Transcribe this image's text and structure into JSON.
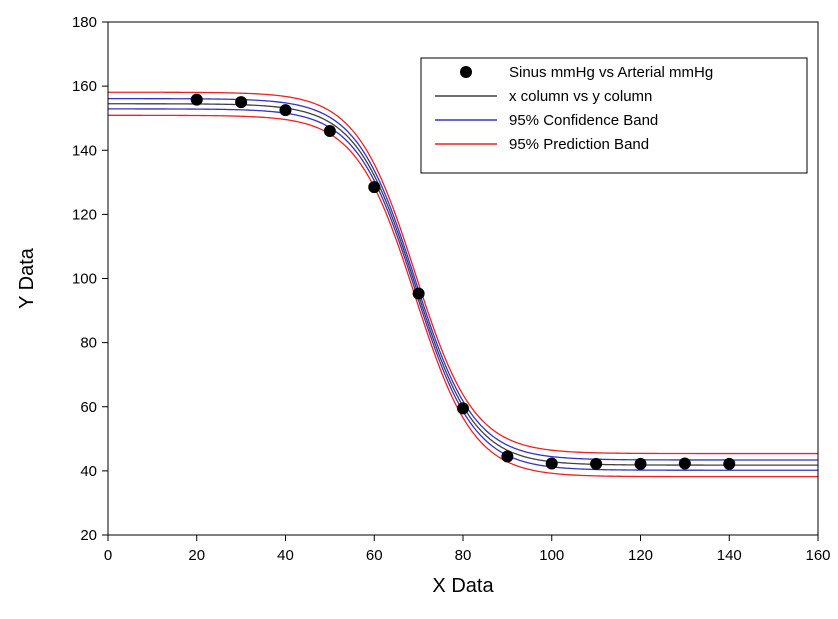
{
  "chart_data": {
    "type": "scatter",
    "title": "",
    "xlabel": "X Data",
    "ylabel": "Y Data",
    "xlim": [
      0,
      160
    ],
    "ylim": [
      20,
      180
    ],
    "xticks": [
      0,
      20,
      40,
      60,
      80,
      100,
      120,
      140,
      160
    ],
    "yticks": [
      20,
      40,
      60,
      80,
      100,
      120,
      140,
      160,
      180
    ],
    "grid": false,
    "legend_position": "top-right",
    "points": {
      "name": "Sinus mmHg vs Arterial mmHg",
      "color": "#000000",
      "x": [
        20,
        30,
        40,
        50,
        60,
        70,
        80,
        90,
        100,
        110,
        120,
        130,
        140
      ],
      "y": [
        155.8,
        155.0,
        152.5,
        146.0,
        128.5,
        95.3,
        59.5,
        44.5,
        42.3,
        42.2,
        42.2,
        42.3,
        42.2
      ]
    },
    "fit": {
      "name": "x column vs y column",
      "color": "#404040",
      "model": "4-parameter logistic",
      "top": 154.5,
      "bottom": 41.8,
      "x50": 69.2,
      "slope": 6.6
    },
    "confidence_band": {
      "name": "95% Confidence Band",
      "color": "#3333cc",
      "half_width": 1.6
    },
    "prediction_band": {
      "name": "95% Prediction Band",
      "color": "#ee2222",
      "half_width": 3.6
    }
  }
}
